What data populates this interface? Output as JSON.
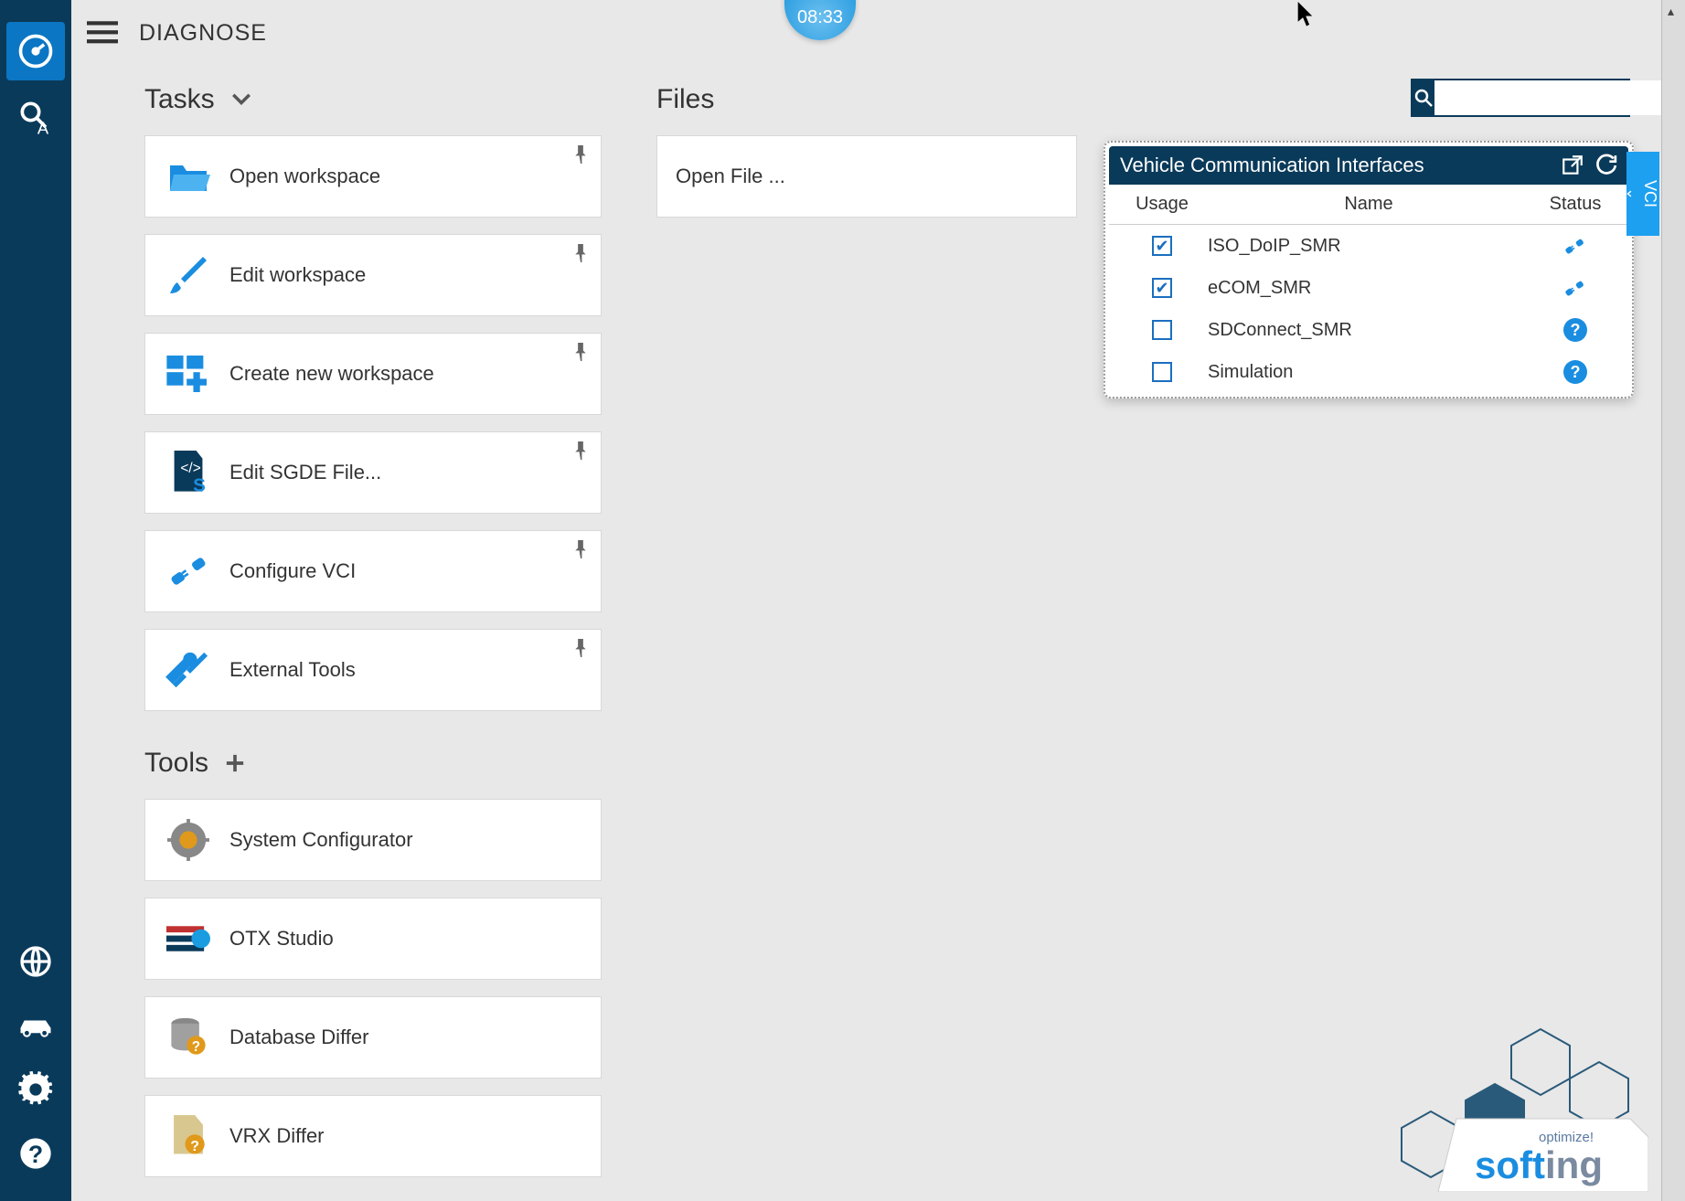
{
  "app_title": "DIAGNOSE",
  "clock": "08:33",
  "search": {
    "placeholder": ""
  },
  "sections": {
    "tasks_title": "Tasks",
    "files_title": "Files",
    "tools_title": "Tools"
  },
  "tasks": [
    {
      "label": "Open workspace"
    },
    {
      "label": "Edit workspace"
    },
    {
      "label": "Create new workspace"
    },
    {
      "label": "Edit SGDE File..."
    },
    {
      "label": "Configure VCI"
    },
    {
      "label": "External Tools"
    }
  ],
  "tools": [
    {
      "label": "System Configurator"
    },
    {
      "label": "OTX Studio"
    },
    {
      "label": "Database Differ"
    },
    {
      "label": "VRX Differ"
    }
  ],
  "files": {
    "open_file_label": "Open File ..."
  },
  "vci": {
    "title": "Vehicle Communication Interfaces",
    "tab_label": "VCI",
    "columns": {
      "usage": "Usage",
      "name": "Name",
      "status": "Status"
    },
    "rows": [
      {
        "checked": true,
        "name": "ISO_DoIP_SMR",
        "status": "connected"
      },
      {
        "checked": true,
        "name": "eCOM_SMR",
        "status": "connected"
      },
      {
        "checked": false,
        "name": "SDConnect_SMR",
        "status": "unknown"
      },
      {
        "checked": false,
        "name": "Simulation",
        "status": "unknown"
      }
    ]
  },
  "branding": {
    "line1": "optimize!",
    "line2a": "soft",
    "line2b": "ing"
  },
  "colors": {
    "rail_bg": "#0a3a5a",
    "accent": "#1a8de0",
    "active": "#0b76c4",
    "page_bg": "#e8e8e8",
    "card_bg": "#ffffff",
    "border": "#d8d8d8",
    "vci_tab": "#1ea0f0"
  }
}
